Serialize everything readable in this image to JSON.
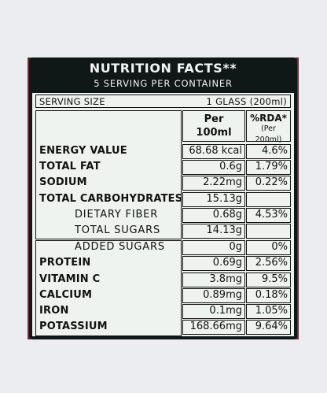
{
  "header": {
    "title": "NUTRITION FACTS**",
    "subtitle": "5 SERVING PER CONTAINER"
  },
  "serving": {
    "label": "SERVING SIZE",
    "value": "1 GLASS (200ml)"
  },
  "columns": {
    "per_line1": "Per",
    "per_line2": "100ml",
    "rda_line1": "%RDA*",
    "rda_line2": "(Per 200ml)"
  },
  "rows": [
    {
      "name": "ENERGY VALUE",
      "value": "68.68 kcal",
      "rda": "4.6%"
    },
    {
      "name": "TOTAL FAT",
      "value": "0.6g",
      "rda": "1.79%"
    },
    {
      "name": "SODIUM",
      "value": "2.22mg",
      "rda": "0.22%"
    },
    {
      "name": "TOTAL CARBOHYDRATES",
      "value": "15.13g",
      "rda": ""
    },
    {
      "name": "DIETARY FIBER",
      "value": "0.68g",
      "rda": "4.53%"
    },
    {
      "name": "TOTAL SUGARS",
      "value": "14.13g",
      "rda": ""
    },
    {
      "name": "ADDED SUGARS",
      "value": "0g",
      "rda": "0%"
    },
    {
      "name": "PROTEIN",
      "value": "0.69g",
      "rda": "2.56%"
    },
    {
      "name": "VITAMIN C",
      "value": "3.8mg",
      "rda": "9.5%"
    },
    {
      "name": "CALCIUM",
      "value": "0.89mg",
      "rda": "0.18%"
    },
    {
      "name": "IRON",
      "value": "0.1mg",
      "rda": "1.05%"
    },
    {
      "name": "POTASSIUM",
      "value": "168.66mg",
      "rda": "9.64%"
    }
  ]
}
